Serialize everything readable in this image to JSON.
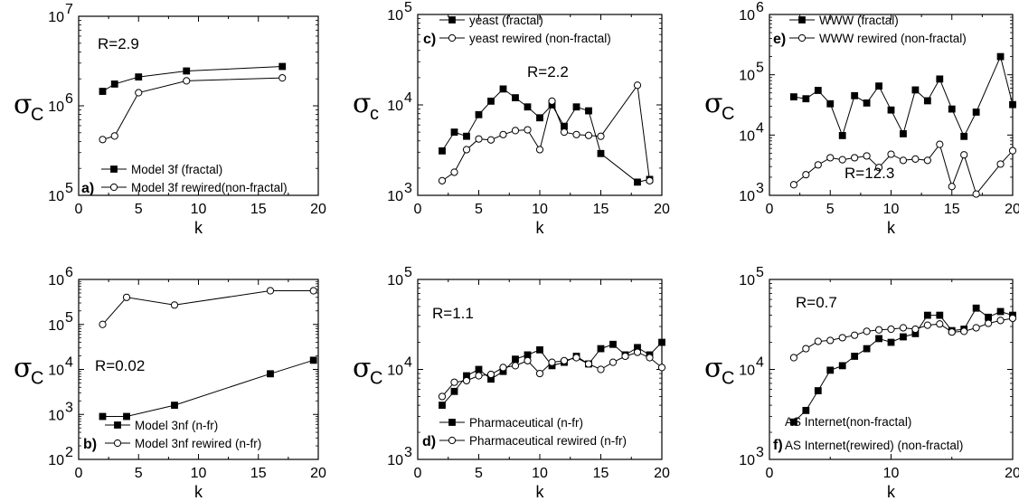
{
  "chart_data": [
    {
      "id": "a",
      "type": "scatter",
      "panel_label": "a)",
      "yscale": "log",
      "xlim": [
        0,
        20
      ],
      "ylim": [
        100000,
        10000000
      ],
      "xticks": [
        0,
        5,
        10,
        15,
        20
      ],
      "xticklabels": [
        "0",
        "5",
        "10",
        "15",
        "20"
      ],
      "yticks": [
        100000,
        1000000,
        10000000
      ],
      "ytick_bases": [
        "10",
        "10",
        "10"
      ],
      "ytick_exps": [
        "5",
        "6",
        "7"
      ],
      "xlabel": "k",
      "ylabel_main": "σ",
      "ylabel_sub": "C",
      "annotation": "R=2.9",
      "legend_position": "bottom-left",
      "series": [
        {
          "name": "Model 3f (fractal)",
          "marker": "square-filled",
          "x": [
            2,
            3,
            5,
            9,
            17
          ],
          "y": [
            1450000,
            1750000,
            2100000,
            2450000,
            2750000
          ]
        },
        {
          "name": "Model 3f rewired(non-fractal)",
          "marker": "circle-open",
          "x": [
            2,
            3,
            5,
            9,
            17
          ],
          "y": [
            420000,
            460000,
            1400000,
            1900000,
            2050000
          ]
        }
      ]
    },
    {
      "id": "c",
      "type": "scatter",
      "panel_label": "c)",
      "yscale": "log",
      "xlim": [
        0,
        20
      ],
      "ylim": [
        1000,
        100000
      ],
      "xticks": [
        0,
        5,
        10,
        15,
        20
      ],
      "xticklabels": [
        "0",
        "5",
        "10",
        "15",
        "20"
      ],
      "yticks": [
        1000,
        10000,
        100000
      ],
      "ytick_bases": [
        "10",
        "10",
        "10"
      ],
      "ytick_exps": [
        "3",
        "4",
        "5"
      ],
      "xlabel": "k",
      "ylabel_main": "σ",
      "ylabel_sub": "c",
      "annotation": "R=2.2",
      "legend_position": "top-left",
      "series": [
        {
          "name": "yeast (fractal)",
          "marker": "square-filled",
          "x": [
            2,
            3,
            4,
            5,
            6,
            7,
            8,
            9,
            10,
            11,
            12,
            13,
            14,
            15,
            18,
            19
          ],
          "y": [
            3100,
            5000,
            4500,
            7800,
            11000,
            15000,
            12000,
            9500,
            7200,
            10000,
            5800,
            9500,
            8600,
            2900,
            1400,
            1500
          ]
        },
        {
          "name": "yeast rewired (non-fractal)",
          "marker": "circle-open",
          "x": [
            2,
            3,
            4,
            5,
            6,
            7,
            8,
            9,
            10,
            11,
            12,
            13,
            14,
            15,
            18,
            19
          ],
          "y": [
            1450,
            1800,
            3200,
            4200,
            4100,
            4700,
            5200,
            5300,
            3200,
            11000,
            5000,
            4700,
            4600,
            4500,
            16500,
            1450
          ]
        }
      ]
    },
    {
      "id": "e",
      "type": "scatter",
      "panel_label": "e)",
      "yscale": "log",
      "xlim": [
        0,
        20
      ],
      "ylim": [
        1000,
        1000000
      ],
      "xticks": [
        0,
        5,
        10,
        15,
        20
      ],
      "xticklabels": [
        "0",
        "5",
        "10",
        "15",
        "20"
      ],
      "yticks": [
        1000,
        10000,
        100000,
        1000000
      ],
      "ytick_bases": [
        "10",
        "10",
        "10",
        "10"
      ],
      "ytick_exps": [
        "3",
        "4",
        "5",
        "6"
      ],
      "xlabel": "k",
      "ylabel_main": "σ",
      "ylabel_sub": "C",
      "annotation": "R=12.3",
      "legend_position": "top-left",
      "series": [
        {
          "name": "WWW (fractal)",
          "marker": "square-filled",
          "x": [
            2,
            3,
            4,
            5,
            6,
            7,
            8,
            9,
            10,
            11,
            12,
            13,
            14,
            15,
            16,
            17,
            19,
            20
          ],
          "y": [
            43000,
            40000,
            55000,
            33000,
            9800,
            45000,
            34000,
            65000,
            26000,
            10500,
            56000,
            37000,
            85000,
            27000,
            9500,
            24000,
            200000,
            32000
          ]
        },
        {
          "name": "WWW rewired (non-fractal)",
          "marker": "circle-open",
          "x": [
            2,
            3,
            4,
            5,
            6,
            7,
            8,
            9,
            10,
            11,
            12,
            13,
            14,
            15,
            16,
            17,
            19,
            20
          ],
          "y": [
            1500,
            2200,
            3200,
            4200,
            3900,
            4200,
            4500,
            2900,
            4800,
            3800,
            4000,
            3800,
            7000,
            1400,
            4700,
            1050,
            3300,
            5500
          ]
        }
      ]
    },
    {
      "id": "b",
      "type": "scatter",
      "panel_label": "b)",
      "yscale": "log",
      "xlim": [
        0,
        20
      ],
      "ylim": [
        100,
        1000000
      ],
      "xticks": [
        0,
        5,
        10,
        15,
        20
      ],
      "xticklabels": [
        "0",
        "5",
        "10",
        "15",
        "20"
      ],
      "yticks": [
        100,
        1000,
        10000,
        100000,
        1000000
      ],
      "ytick_bases": [
        "10",
        "10",
        "10",
        "10",
        "10"
      ],
      "ytick_exps": [
        "2",
        "3",
        "4",
        "5",
        "6"
      ],
      "xlabel": "k",
      "ylabel_main": "σ",
      "ylabel_sub": "C",
      "annotation": "R=0.02",
      "legend_position": "bottom-left",
      "series": [
        {
          "name": "Model 3nf (n-fr)",
          "marker": "square-filled",
          "x": [
            2,
            4,
            8,
            16,
            19.6
          ],
          "y": [
            900,
            900,
            1600,
            8000,
            16000
          ]
        },
        {
          "name": "Model 3nf rewired (n-fr)",
          "marker": "circle-open",
          "x": [
            2,
            4,
            8,
            16,
            19.6
          ],
          "y": [
            100000,
            400000,
            270000,
            560000,
            560000
          ]
        }
      ]
    },
    {
      "id": "d",
      "type": "scatter",
      "panel_label": "d)",
      "yscale": "log",
      "xlim": [
        0,
        20
      ],
      "ylim": [
        1000,
        100000
      ],
      "xticks": [
        0,
        5,
        10,
        15,
        20
      ],
      "xticklabels": [
        "0",
        "5",
        "10",
        "15",
        "20"
      ],
      "yticks": [
        1000,
        10000,
        100000
      ],
      "ytick_bases": [
        "10",
        "10",
        "10"
      ],
      "ytick_exps": [
        "3",
        "4",
        "5"
      ],
      "xlabel": "k",
      "ylabel_main": "σ",
      "ylabel_sub": "C",
      "annotation": "R=1.1",
      "legend_position": "bottom-left",
      "series": [
        {
          "name": "Pharmaceutical (n-fr)",
          "marker": "square-filled",
          "x": [
            2,
            3,
            4,
            5,
            6,
            7,
            8,
            9,
            10,
            11,
            12,
            13,
            14,
            15,
            16,
            17,
            18,
            19,
            20
          ],
          "y": [
            4000,
            5700,
            8500,
            10000,
            7800,
            9500,
            13000,
            14500,
            16500,
            11000,
            12000,
            14000,
            11500,
            17000,
            19000,
            14500,
            17500,
            14500,
            20000
          ]
        },
        {
          "name": "Pharmaceutical rewired (n-fr)",
          "marker": "circle-open",
          "x": [
            2,
            3,
            4,
            5,
            6,
            7,
            8,
            9,
            10,
            11,
            12,
            13,
            14,
            15,
            16,
            17,
            18,
            19,
            20
          ],
          "y": [
            5000,
            7200,
            7500,
            8500,
            8800,
            10500,
            11000,
            12500,
            9000,
            12000,
            12500,
            13500,
            11500,
            10000,
            12000,
            14000,
            15500,
            13500,
            10500
          ]
        }
      ]
    },
    {
      "id": "f",
      "type": "scatter",
      "panel_label": "f)",
      "yscale": "log",
      "xlim": [
        0,
        20
      ],
      "ylim": [
        1000,
        100000
      ],
      "xticks": [
        0,
        10,
        20
      ],
      "xticklabels": [
        "0",
        "10",
        "20"
      ],
      "yticks": [
        1000,
        10000,
        100000
      ],
      "ytick_bases": [
        "10",
        "10",
        "10"
      ],
      "ytick_exps": [
        "3",
        "4",
        "5"
      ],
      "xlabel": "k",
      "ylabel_main": "σ",
      "ylabel_sub": "C",
      "annotation": "R=0.7",
      "legend_position": "bottom-left",
      "series": [
        {
          "name": "AS Internet(non-fractal)",
          "marker": "square-filled",
          "x": [
            2,
            3,
            4,
            5,
            6,
            7,
            8,
            9,
            10,
            11,
            12,
            13,
            14,
            15,
            16,
            17,
            18,
            19,
            20
          ],
          "y": [
            2600,
            3500,
            5800,
            9800,
            11000,
            14000,
            17000,
            22000,
            20000,
            23000,
            25000,
            40000,
            40000,
            27000,
            28000,
            48000,
            38000,
            44000,
            40000
          ]
        },
        {
          "name": "AS Internet(rewired) (non-fractal)",
          "marker": "circle-open",
          "x": [
            2,
            3,
            4,
            5,
            6,
            7,
            8,
            9,
            10,
            11,
            12,
            13,
            14,
            15,
            16,
            17,
            18,
            19,
            20
          ],
          "y": [
            13500,
            17000,
            20500,
            21000,
            22500,
            24000,
            26500,
            27500,
            28000,
            29000,
            28000,
            31000,
            32000,
            26000,
            26500,
            29000,
            32500,
            35000,
            37000
          ]
        }
      ]
    }
  ]
}
